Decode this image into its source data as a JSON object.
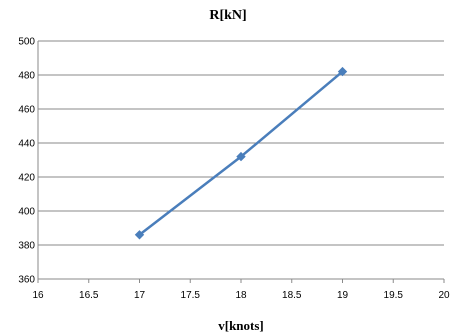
{
  "chart_data": {
    "type": "line",
    "title": "R[kN]",
    "xlabel": "v[knots]",
    "ylabel": "",
    "xlim": [
      16,
      20
    ],
    "ylim": [
      360,
      500
    ],
    "x_ticks": [
      "16",
      "16.5",
      "17",
      "17.5",
      "18",
      "18.5",
      "19",
      "19.5",
      "20"
    ],
    "y_ticks": [
      "360",
      "380",
      "400",
      "420",
      "440",
      "460",
      "480",
      "500"
    ],
    "grid": "horizontal",
    "legend": "none",
    "series": [
      {
        "color": "#4A7EBB",
        "marker": "diamond",
        "points": [
          {
            "x": 17,
            "y": 386
          },
          {
            "x": 18,
            "y": 432
          },
          {
            "x": 19,
            "y": 482
          }
        ]
      }
    ]
  }
}
